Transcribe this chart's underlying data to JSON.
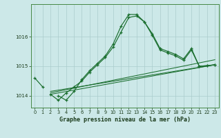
{
  "title": "Graphe pression niveau de la mer (hPa)",
  "bg_color": "#cce8e8",
  "grid_color": "#aacccc",
  "line_color": "#1a6e2e",
  "xlim": [
    -0.5,
    23.5
  ],
  "ylim": [
    1013.6,
    1017.1
  ],
  "yticks": [
    1014,
    1015,
    1016
  ],
  "xticks": [
    0,
    1,
    2,
    3,
    4,
    5,
    6,
    7,
    8,
    9,
    10,
    11,
    12,
    13,
    14,
    15,
    16,
    17,
    18,
    19,
    20,
    21,
    22,
    23
  ],
  "series1_x": [
    0,
    1,
    2,
    3,
    4,
    5,
    6,
    7,
    8,
    9,
    10,
    11,
    12,
    13,
    14,
    15,
    16,
    17,
    18,
    19,
    20,
    21,
    22,
    23
  ],
  "series1_y": [
    1014.6,
    1014.3,
    null,
    1014.0,
    1013.85,
    1014.15,
    1014.55,
    1014.85,
    1015.1,
    1015.35,
    1015.75,
    1016.35,
    1016.75,
    1016.75,
    1016.5,
    1016.1,
    1015.6,
    1015.5,
    1015.4,
    1015.25,
    1015.6,
    1015.0,
    1015.02,
    1015.05
  ],
  "series2_x": [
    2,
    3,
    4,
    5,
    6,
    7,
    8,
    9,
    10,
    11,
    12,
    13,
    14,
    15,
    16,
    17,
    18,
    19,
    20,
    21,
    22,
    23
  ],
  "series2_y": [
    1014.05,
    1013.85,
    1014.1,
    1014.3,
    1014.5,
    1014.8,
    1015.05,
    1015.3,
    1015.65,
    1016.15,
    1016.65,
    1016.7,
    1016.5,
    1016.05,
    1015.55,
    1015.45,
    1015.35,
    1015.2,
    1015.55,
    1015.0,
    1015.02,
    1015.05
  ],
  "line3_x": [
    2,
    23
  ],
  "line3_y": [
    1014.05,
    1015.05
  ],
  "line4_x": [
    2,
    23
  ],
  "line4_y": [
    1014.1,
    1015.22
  ],
  "line5_x": [
    2,
    23
  ],
  "line5_y": [
    1014.15,
    1015.05
  ]
}
